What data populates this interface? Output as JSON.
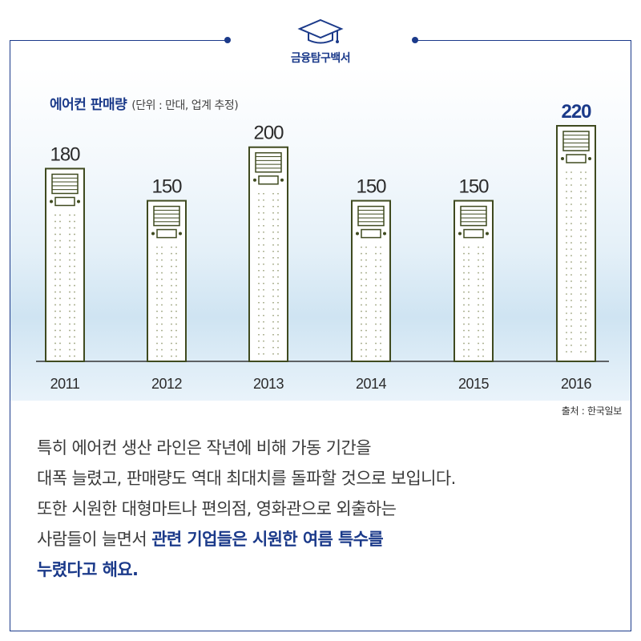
{
  "brand": {
    "name": "금융탐구백서",
    "icon": "graduation-cap-icon"
  },
  "chart_data": {
    "type": "bar",
    "title": "에어컨 판매량",
    "unit_note": "(단위 : 만대, 업계 추정)",
    "categories": [
      "2011",
      "2012",
      "2013",
      "2014",
      "2015",
      "2016"
    ],
    "values": [
      180,
      150,
      200,
      150,
      150,
      220
    ],
    "highlight_index": 5,
    "ylim": [
      0,
      220
    ],
    "bar_style": "air-conditioner-unit",
    "colors": {
      "highlight": "#1b3a8a",
      "label": "#2b2b2b",
      "bar_stroke": "#3f4a1f",
      "bar_fill": "#ffffff"
    }
  },
  "source": "출처 : 한국일보",
  "body": {
    "line1": "특히 에어컨 생산 라인은 작년에 비해 가동 기간을",
    "line2": "대폭 늘렸고, 판매량도 역대 최대치를 돌파할 것으로 보입니다.",
    "line3": "또한 시원한 대형마트나 편의점, 영화관으로 외출하는",
    "line4_plain": "사람들이 늘면서 ",
    "line4_highlight": "관련 기업들은 시원한 여름 특수를",
    "line5_highlight": "누렸다고 해요."
  },
  "colors": {
    "accent": "#1b3a8a",
    "text": "#3a3a3a"
  }
}
